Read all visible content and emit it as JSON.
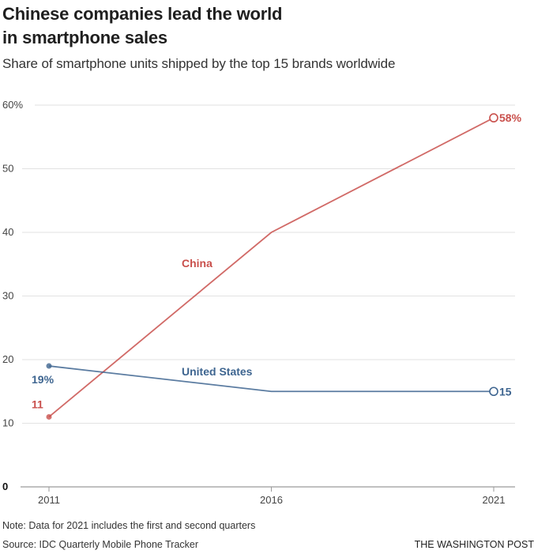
{
  "header": {
    "title": "Chinese companies lead the world in smartphone sales",
    "title_line1": "Chinese companies lead the world",
    "title_line2": "in smartphone sales",
    "subtitle": "Share of smartphone units shipped by the top 15 brands worldwide"
  },
  "footer": {
    "note": "Note: Data for 2021 includes the first and second quarters",
    "source": "Source: IDC Quarterly Mobile Phone Tracker",
    "credit": "THE WASHINGTON POST"
  },
  "chart_data": {
    "type": "line",
    "title": "Chinese companies lead the world in smartphone sales",
    "subtitle": "Share of smartphone units shipped by the top 15 brands worldwide",
    "xlabel": "",
    "ylabel": "",
    "x": [
      2011,
      2016,
      2021
    ],
    "x_tick_labels": [
      "2011",
      "2016",
      "2021"
    ],
    "ylim": [
      0,
      60
    ],
    "y_ticks": [
      0,
      10,
      20,
      30,
      40,
      50,
      60
    ],
    "y_tick_labels": [
      "0",
      "10",
      "20",
      "30",
      "40",
      "50",
      "60%"
    ],
    "grid": true,
    "series": [
      {
        "name": "China",
        "color": "#c9504c",
        "values": [
          11,
          40,
          58
        ],
        "start_label": "11",
        "end_label": "58%",
        "series_label": "China"
      },
      {
        "name": "United States",
        "color": "#3e6590",
        "values": [
          19,
          15,
          15
        ],
        "start_label": "19%",
        "end_label": "15",
        "series_label": "United States"
      }
    ],
    "colors": {
      "china": "#c9504c",
      "us": "#3e6590",
      "grid": "#e2e2e2",
      "axis": "#9a9a9a"
    }
  }
}
